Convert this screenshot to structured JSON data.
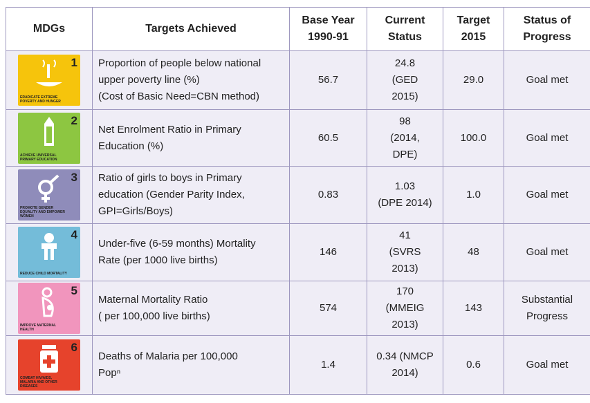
{
  "table": {
    "header": [
      "MDGs",
      "Targets Achieved",
      "Base Year\n1990-91",
      "Current\nStatus",
      "Target\n2015",
      "Status of\nProgress"
    ],
    "rows": [
      {
        "number": "1",
        "caption": "ERADICATE EXTREME POVERTY AND HUNGER",
        "target": "Proportion of people below national upper poverty line  (%)\n(Cost of Basic Need=CBN method)",
        "base": "56.7",
        "current": "24.8\n(GED\n2015)",
        "target2015": "29.0",
        "status": "Goal met"
      },
      {
        "number": "2",
        "caption": "ACHIEVE UNIVERSAL PRIMARY EDUCATION",
        "target": "Net Enrolment Ratio in Primary\nEducation (%)",
        "base": "60.5",
        "current": "98\n(2014,\nDPE)",
        "target2015": "100.0",
        "status": "Goal met"
      },
      {
        "number": "3",
        "caption": "PROMOTE GENDER EQUALITY AND EMPOWER WOMEN",
        "target": "Ratio of girls to boys in Primary education (Gender Parity Index, GPI=Girls/Boys)",
        "base": "0.83",
        "current": "1.03\n(DPE 2014)",
        "target2015": "1.0",
        "status": "Goal met"
      },
      {
        "number": "4",
        "caption": "REDUCE CHILD MORTALITY",
        "target": "Under-five (6-59 months) Mortality\nRate  (per 1000 live births)",
        "base": "146",
        "current": "41\n(SVRS\n2013)",
        "target2015": "48",
        "status": "Goal met"
      },
      {
        "number": "5",
        "caption": "IMPROVE MATERNAL HEALTH",
        "target": "Maternal Mortality Ratio\n( per 100,000 live births)",
        "base": "574",
        "current": "170\n(MMEIG\n2013)",
        "target2015": "143",
        "status": "Substantial\nProgress"
      },
      {
        "number": "6",
        "caption": "COMBAT HIV/AIDS, MALARIA AND OTHER DISEASES",
        "target": "Deaths of  Malaria per 100,000\nPopⁿ",
        "base": "1.4",
        "current": "0.34 (NMCP\n2014)",
        "target2015": "0.6",
        "status": "Goal met"
      }
    ]
  }
}
